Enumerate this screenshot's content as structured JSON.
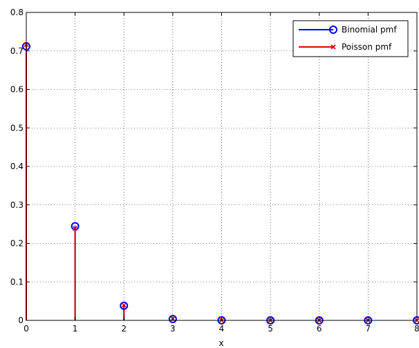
{
  "chart_data": {
    "type": "stem",
    "xlabel": "x",
    "ylabel": "",
    "title": "",
    "xlim": [
      0,
      8
    ],
    "ylim": [
      0,
      0.8
    ],
    "xticks": [
      "0",
      "1",
      "2",
      "3",
      "4",
      "5",
      "6",
      "7",
      "8"
    ],
    "yticks": [
      "0",
      "0.1",
      "0.2",
      "0.3",
      "0.4",
      "0.5",
      "0.6",
      "0.7",
      "0.8"
    ],
    "grid": true,
    "legend_position": "top-right",
    "x": [
      0,
      1,
      2,
      3,
      4,
      5,
      6,
      7,
      8
    ],
    "series": [
      {
        "name": "Binomial pmf",
        "color": "#0000ff",
        "marker": "circle",
        "values": [
          0.7118,
          0.2447,
          0.0381,
          0.0035,
          0.0002,
          0.0,
          0.0,
          0.0,
          0.0
        ]
      },
      {
        "name": "Poisson pmf",
        "color": "#dd0000",
        "marker": "x",
        "values": [
          0.7164,
          0.2389,
          0.0398,
          0.0044,
          0.0004,
          0.0,
          0.0,
          0.0,
          0.0
        ]
      }
    ]
  }
}
